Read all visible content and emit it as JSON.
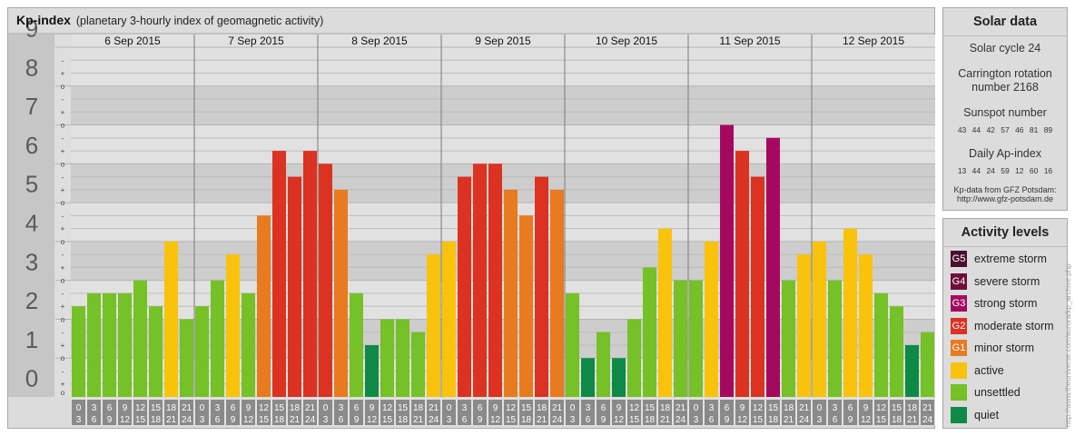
{
  "header": {
    "title": "Kp-index",
    "subtitle": "(planetary 3-hourly index of geomagnetic activity)"
  },
  "chart_data": {
    "type": "bar",
    "title": "Kp-index",
    "subtitle": "(planetary 3-hourly index of geomagnetic activity)",
    "ylim": [
      0,
      9
    ],
    "yticks": [
      "0",
      "1",
      "2",
      "3",
      "4",
      "5",
      "6",
      "7",
      "8",
      "9"
    ],
    "minor_ticks": [
      "-",
      "o",
      "+"
    ],
    "days": [
      "6 Sep 2015",
      "7 Sep 2015",
      "8 Sep 2015",
      "9 Sep 2015",
      "10 Sep 2015",
      "11 Sep 2015",
      "12 Sep 2015"
    ],
    "interval_top": [
      "0",
      "3",
      "6",
      "9",
      "12",
      "15",
      "18",
      "21"
    ],
    "interval_bottom": [
      "3",
      "6",
      "9",
      "12",
      "15",
      "18",
      "21",
      "24"
    ],
    "values": [
      [
        2.333,
        2.667,
        2.667,
        2.667,
        3.0,
        2.333,
        4.0,
        2.0
      ],
      [
        2.333,
        3.0,
        3.667,
        2.667,
        4.667,
        6.333,
        5.667,
        6.333
      ],
      [
        6.0,
        5.333,
        2.667,
        1.333,
        2.0,
        2.0,
        1.667,
        3.667
      ],
      [
        4.0,
        5.667,
        6.0,
        6.0,
        5.333,
        4.667,
        5.667,
        5.333
      ],
      [
        2.667,
        1.0,
        1.667,
        1.0,
        2.0,
        3.333,
        4.333,
        3.0
      ],
      [
        3.0,
        4.0,
        7.0,
        6.333,
        5.667,
        6.667,
        3.0,
        3.667
      ],
      [
        4.0,
        3.0,
        4.333,
        3.667,
        2.667,
        2.333,
        1.333,
        1.667
      ]
    ],
    "grid": true,
    "legend_placement": "right"
  },
  "solar": {
    "title": "Solar data",
    "cycle": "Solar cycle 24",
    "carrington_l1": "Carrington rotation",
    "carrington_l2": "number 2168",
    "sunspot_title": "Sunspot number",
    "sunspot_values": "43 44 42 57 46 81 89",
    "ap_title": "Daily Ap-index",
    "ap_values": "13 44 24 59 12 60 16",
    "source_l1": "Kp-data from GFZ Potsdam:",
    "source_l2": "http://www.gfz-potsdam.de"
  },
  "activity": {
    "title": "Activity levels",
    "levels": [
      {
        "code": "G5",
        "label": "extreme storm",
        "color": "#4a1030"
      },
      {
        "code": "G4",
        "label": "severe storm",
        "color": "#6e0e3a"
      },
      {
        "code": "G3",
        "label": "strong storm",
        "color": "#a5095f"
      },
      {
        "code": "G2",
        "label": "moderate storm",
        "color": "#dc3222"
      },
      {
        "code": "G1",
        "label": "minor storm",
        "color": "#e87a20"
      },
      {
        "code": "",
        "label": "active",
        "color": "#f8c30a"
      },
      {
        "code": "",
        "label": "unsettled",
        "color": "#76c028"
      },
      {
        "code": "",
        "label": "quiet",
        "color": "#0e8a46"
      }
    ]
  },
  "watermark": "http://www.theuniverse.com/aurora/kp_archive.php"
}
